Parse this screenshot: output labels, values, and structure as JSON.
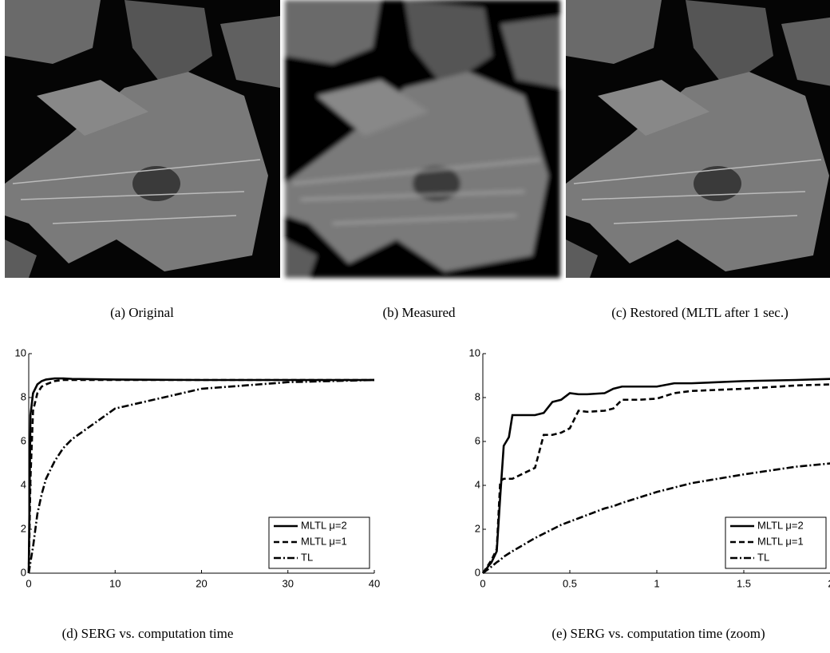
{
  "images": [
    {
      "caption": "(a)  Original"
    },
    {
      "caption": "(b)  Measured"
    },
    {
      "caption": "(c)  Restored (MLTL after 1 sec.)"
    }
  ],
  "chart_data": [
    {
      "type": "line",
      "caption": "(d)  SERG vs. computation time",
      "x": [
        0,
        0.2,
        0.5,
        1,
        1.5,
        2,
        3,
        4,
        5,
        10,
        20,
        30,
        40
      ],
      "series": [
        {
          "name": "MLTL μ=2",
          "color": "#000000",
          "linestyle": "solid",
          "values": [
            0,
            7.2,
            8.2,
            8.6,
            8.75,
            8.82,
            8.87,
            8.87,
            8.85,
            8.82,
            8.8,
            8.8,
            8.8
          ]
        },
        {
          "name": "MLTL μ=1",
          "color": "#000000",
          "linestyle": "dashed",
          "values": [
            0,
            4.3,
            7.4,
            8.2,
            8.5,
            8.6,
            8.75,
            8.8,
            8.8,
            8.8,
            8.8,
            8.8,
            8.8
          ]
        },
        {
          "name": "TL",
          "color": "#000000",
          "linestyle": "dashdot",
          "values": [
            0,
            0.5,
            1.2,
            2.7,
            3.6,
            4.3,
            5.1,
            5.7,
            6.1,
            7.5,
            8.4,
            8.7,
            8.8
          ]
        }
      ],
      "xlim": [
        0,
        40
      ],
      "xticks": [
        0,
        10,
        20,
        30,
        40
      ],
      "ylim": [
        0,
        10
      ],
      "yticks": [
        0,
        2,
        4,
        6,
        8,
        10
      ],
      "legend": "lower right"
    },
    {
      "type": "line",
      "caption": "(e)  SERG vs. computation time (zoom)",
      "x": [
        0,
        0.05,
        0.08,
        0.1,
        0.12,
        0.15,
        0.17,
        0.3,
        0.35,
        0.4,
        0.45,
        0.5,
        0.55,
        0.6,
        0.7,
        0.75,
        0.8,
        0.9,
        1,
        1.1,
        1.2,
        1.5,
        1.8,
        2
      ],
      "series": [
        {
          "name": "MLTL μ=2",
          "color": "#000000",
          "linestyle": "solid",
          "values": [
            0,
            0.5,
            1.0,
            3.5,
            5.8,
            6.2,
            7.2,
            7.2,
            7.3,
            7.8,
            7.9,
            8.2,
            8.15,
            8.15,
            8.2,
            8.4,
            8.5,
            8.5,
            8.5,
            8.65,
            8.65,
            8.75,
            8.8,
            8.85
          ]
        },
        {
          "name": "MLTL μ=1",
          "color": "#000000",
          "linestyle": "dashed",
          "values": [
            0,
            0.6,
            1.1,
            4.2,
            4.3,
            4.3,
            4.3,
            4.8,
            6.3,
            6.3,
            6.4,
            6.6,
            7.4,
            7.35,
            7.4,
            7.5,
            7.9,
            7.9,
            7.95,
            8.2,
            8.3,
            8.4,
            8.55,
            8.6
          ]
        },
        {
          "name": "TL",
          "color": "#000000",
          "linestyle": "dashdot",
          "values": [
            0,
            0.3,
            0.5,
            0.6,
            0.75,
            0.9,
            1.0,
            1.6,
            1.8,
            2.0,
            2.2,
            2.35,
            2.5,
            2.65,
            2.95,
            3.05,
            3.2,
            3.45,
            3.7,
            3.9,
            4.1,
            4.5,
            4.85,
            5.0
          ]
        }
      ],
      "xlim": [
        0,
        2
      ],
      "xticks": [
        0,
        0.5,
        1,
        1.5,
        2
      ],
      "ylim": [
        0,
        10
      ],
      "yticks": [
        0,
        2,
        4,
        6,
        8,
        10
      ],
      "legend": "lower right"
    }
  ]
}
